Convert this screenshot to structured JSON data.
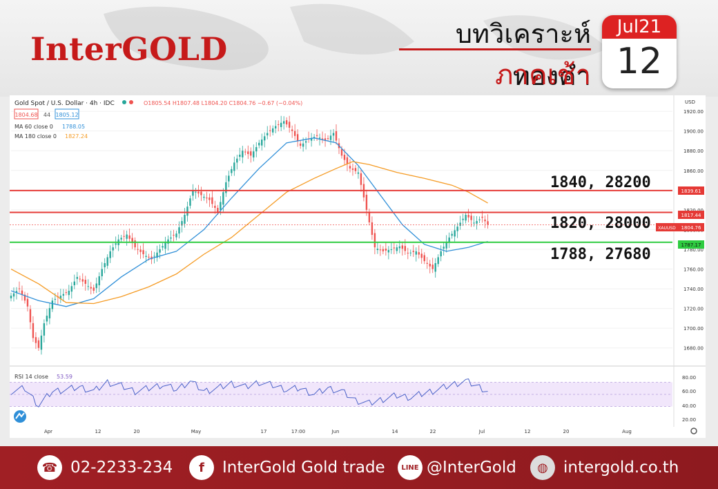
{
  "brand": {
    "logo_text": "InterGOLD"
  },
  "header": {
    "title": "บทวิเคราะห์ทองคำ",
    "subtitle": "ภาคเช้า"
  },
  "calendar": {
    "month": "Jul21",
    "day": "12"
  },
  "symbol_bar": {
    "symbol": "Gold Spot / U.S. Dollar · 4h · IDC",
    "ohlc": "O1805.54 H1807.48 L1804.20 C1804.76 −0.67 (−0.04%)",
    "bid": "1804.68",
    "spread": "44",
    "ask": "1805.12",
    "ma60_label": "MA 60 close 0",
    "ma60_value": "1788.05",
    "ma180_label": "MA 180 close 0",
    "ma180_value": "1827.24",
    "currency": "USD"
  },
  "price_tags": {
    "resistance_1": "1839.61",
    "resistance_2": "1817.44",
    "symbol": "XAUUSD",
    "last": "1804.76",
    "support": "1787.17"
  },
  "annotations": {
    "level_1": "1840, 28200",
    "level_2": "1820, 28000",
    "level_3": "1788, 27680"
  },
  "rsi": {
    "label": "RSI 14 close",
    "value": "53.59",
    "ticks": [
      "80.00",
      "60.00",
      "40.00",
      "20.00"
    ]
  },
  "footer": {
    "phone": "02-2233-234",
    "facebook": "InterGold Gold trade",
    "line": "@InterGold",
    "website": "intergold.co.th"
  },
  "colors": {
    "brand_red": "#c61a1a",
    "resistance": "#e53935",
    "support": "#2ecc40",
    "ma60": "#2f8fd8",
    "ma180": "#f59b24",
    "up": "#26a69a",
    "down": "#ef5350"
  },
  "chart_data": {
    "type": "candlestick",
    "title": "Gold Spot / U.S. Dollar · 4h · IDC",
    "ylim": [
      1670,
      1925
    ],
    "y_ticks": [
      1920,
      1900,
      1880,
      1860,
      1840,
      1820,
      1800,
      1780,
      1760,
      1740,
      1720,
      1700,
      1680
    ],
    "x_ticks": [
      "Apr",
      "12",
      "20",
      "May",
      "17",
      "17:00",
      "Jun",
      "14",
      "22",
      "Jul",
      "12",
      "20",
      "Aug"
    ],
    "horizontal_lines": [
      {
        "name": "resistance",
        "value": 1839.61
      },
      {
        "name": "resistance",
        "value": 1817.44
      },
      {
        "name": "support",
        "value": 1787.17
      }
    ],
    "price_path": [
      [
        0,
        1733
      ],
      [
        3,
        1740
      ],
      [
        6,
        1722
      ],
      [
        8,
        1690
      ],
      [
        10,
        1680
      ],
      [
        12,
        1705
      ],
      [
        15,
        1728
      ],
      [
        18,
        1733
      ],
      [
        21,
        1738
      ],
      [
        24,
        1752
      ],
      [
        27,
        1745
      ],
      [
        30,
        1738
      ],
      [
        33,
        1760
      ],
      [
        36,
        1778
      ],
      [
        39,
        1790
      ],
      [
        42,
        1795
      ],
      [
        45,
        1782
      ],
      [
        48,
        1775
      ],
      [
        51,
        1770
      ],
      [
        54,
        1780
      ],
      [
        57,
        1790
      ],
      [
        60,
        1796
      ],
      [
        63,
        1815
      ],
      [
        66,
        1840
      ],
      [
        69,
        1835
      ],
      [
        72,
        1830
      ],
      [
        75,
        1818
      ],
      [
        78,
        1848
      ],
      [
        81,
        1868
      ],
      [
        84,
        1880
      ],
      [
        87,
        1875
      ],
      [
        90,
        1888
      ],
      [
        93,
        1898
      ],
      [
        96,
        1905
      ],
      [
        99,
        1910
      ],
      [
        102,
        1900
      ],
      [
        105,
        1885
      ],
      [
        108,
        1892
      ],
      [
        111,
        1895
      ],
      [
        114,
        1890
      ],
      [
        117,
        1898
      ],
      [
        120,
        1875
      ],
      [
        123,
        1862
      ],
      [
        126,
        1858
      ],
      [
        129,
        1820
      ],
      [
        132,
        1782
      ],
      [
        135,
        1778
      ],
      [
        138,
        1780
      ],
      [
        141,
        1783
      ],
      [
        144,
        1776
      ],
      [
        147,
        1778
      ],
      [
        150,
        1768
      ],
      [
        153,
        1760
      ],
      [
        156,
        1778
      ],
      [
        159,
        1792
      ],
      [
        162,
        1803
      ],
      [
        165,
        1815
      ],
      [
        168,
        1807
      ],
      [
        171,
        1812
      ],
      [
        173,
        1805
      ]
    ],
    "ma60": [
      [
        0,
        1738
      ],
      [
        10,
        1728
      ],
      [
        20,
        1722
      ],
      [
        30,
        1730
      ],
      [
        40,
        1752
      ],
      [
        50,
        1770
      ],
      [
        60,
        1778
      ],
      [
        70,
        1800
      ],
      [
        80,
        1832
      ],
      [
        90,
        1862
      ],
      [
        100,
        1888
      ],
      [
        110,
        1893
      ],
      [
        118,
        1888
      ],
      [
        126,
        1865
      ],
      [
        134,
        1835
      ],
      [
        142,
        1805
      ],
      [
        150,
        1785
      ],
      [
        158,
        1778
      ],
      [
        166,
        1782
      ],
      [
        173,
        1788
      ]
    ],
    "ma180": [
      [
        0,
        1760
      ],
      [
        10,
        1745
      ],
      [
        20,
        1726
      ],
      [
        30,
        1725
      ],
      [
        40,
        1732
      ],
      [
        50,
        1742
      ],
      [
        60,
        1755
      ],
      [
        70,
        1775
      ],
      [
        80,
        1792
      ],
      [
        90,
        1815
      ],
      [
        100,
        1838
      ],
      [
        110,
        1852
      ],
      [
        118,
        1862
      ],
      [
        124,
        1869
      ],
      [
        130,
        1866
      ],
      [
        140,
        1858
      ],
      [
        150,
        1852
      ],
      [
        160,
        1845
      ],
      [
        166,
        1838
      ],
      [
        173,
        1827
      ]
    ],
    "rsi_path": [
      [
        0,
        55
      ],
      [
        5,
        60
      ],
      [
        10,
        32
      ],
      [
        15,
        55
      ],
      [
        20,
        58
      ],
      [
        25,
        62
      ],
      [
        30,
        55
      ],
      [
        35,
        70
      ],
      [
        40,
        64
      ],
      [
        45,
        55
      ],
      [
        50,
        60
      ],
      [
        55,
        66
      ],
      [
        60,
        58
      ],
      [
        65,
        72
      ],
      [
        70,
        55
      ],
      [
        75,
        60
      ],
      [
        80,
        68
      ],
      [
        85,
        62
      ],
      [
        90,
        70
      ],
      [
        95,
        65
      ],
      [
        100,
        58
      ],
      [
        105,
        60
      ],
      [
        110,
        50
      ],
      [
        115,
        60
      ],
      [
        120,
        55
      ],
      [
        125,
        40
      ],
      [
        130,
        35
      ],
      [
        135,
        42
      ],
      [
        140,
        48
      ],
      [
        145,
        45
      ],
      [
        150,
        52
      ],
      [
        155,
        58
      ],
      [
        160,
        66
      ],
      [
        165,
        72
      ],
      [
        170,
        62
      ],
      [
        173,
        55
      ]
    ]
  }
}
